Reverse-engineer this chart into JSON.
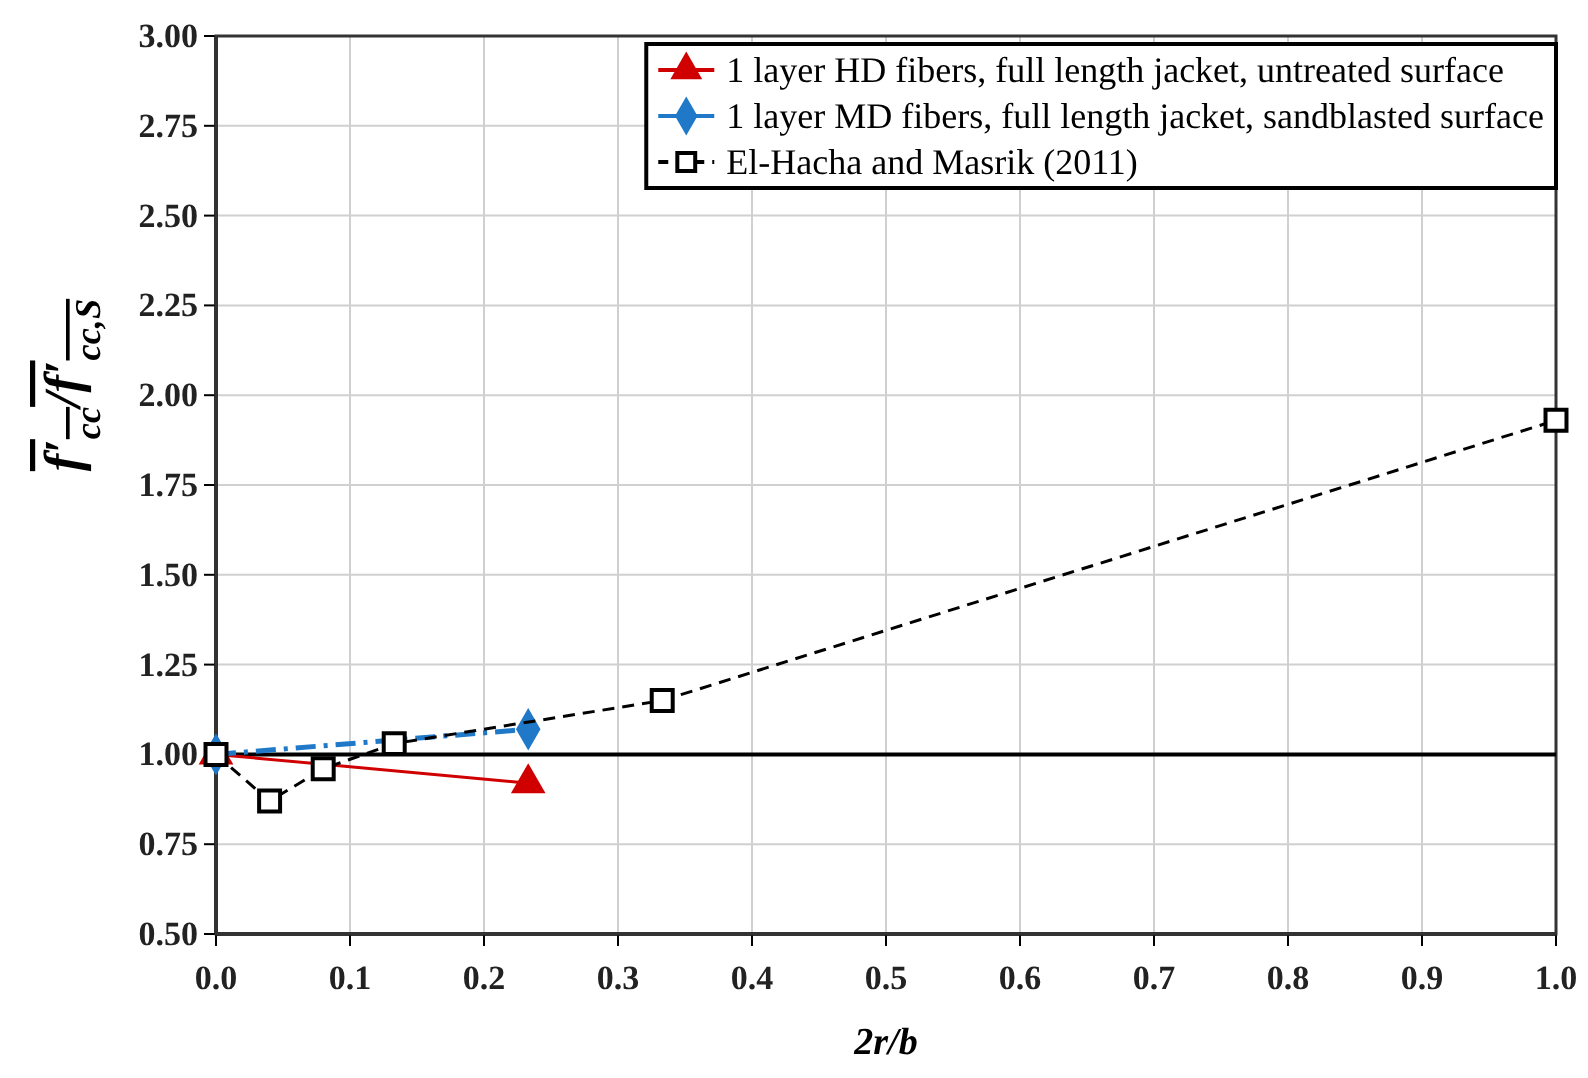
{
  "chart_data": {
    "type": "line",
    "xlabel": "2r/b",
    "ylabel": "f′$_{cc}$/f′$_{cc,S}$",
    "xlim": [
      0,
      1
    ],
    "xticks": [
      {
        "value": 0,
        "label": "0.0"
      },
      {
        "value": 0.1,
        "label": "0.1"
      },
      {
        "value": 0.2,
        "label": "0.2"
      },
      {
        "value": 0.3,
        "label": "0.3"
      },
      {
        "value": 0.4,
        "label": "0.4"
      },
      {
        "value": 0.5,
        "label": "0.5"
      },
      {
        "value": 0.6,
        "label": "0.6"
      },
      {
        "value": 0.7,
        "label": "0.7"
      },
      {
        "value": 0.8,
        "label": "0.8"
      },
      {
        "value": 0.9,
        "label": "0.9"
      },
      {
        "value": 1,
        "label": "1.0"
      }
    ],
    "ylim": [
      0.5,
      3
    ],
    "yticks": [
      {
        "value": 0.5,
        "label": "0.50"
      },
      {
        "value": 0.75,
        "label": "0.75"
      },
      {
        "value": 1,
        "label": "1.00"
      },
      {
        "value": 1.25,
        "label": "1.25"
      },
      {
        "value": 1.5,
        "label": "1.50"
      },
      {
        "value": 1.75,
        "label": "1.75"
      },
      {
        "value": 2,
        "label": "2.00"
      },
      {
        "value": 2.25,
        "label": "2.25"
      },
      {
        "value": 2.5,
        "label": "2.50"
      },
      {
        "value": 2.75,
        "label": "2.75"
      },
      {
        "value": 3,
        "label": "3.00"
      }
    ],
    "grid": true,
    "legend": "top right",
    "ref_lines": [
      {
        "axis": "y",
        "value": 1,
        "color": "#000000",
        "line_style": "solid"
      }
    ],
    "series": [
      {
        "name": "1 layer HD fibers, full length jacket, untreated surface",
        "color": "#d00000",
        "marker": "triangle",
        "line_style": "solid",
        "x": [
          0,
          0.233
        ],
        "values": [
          1.0,
          0.92
        ]
      },
      {
        "name": "1 layer MD fibers, full length jacket, sandblasted surface",
        "color": "#1f78c8",
        "marker": "diamond",
        "line_style": "dashdot",
        "x": [
          0,
          0.233
        ],
        "values": [
          1.0,
          1.07
        ]
      },
      {
        "name": "El-Hacha and Masrik (2011)",
        "color": "#000000",
        "marker": "square",
        "line_style": "dashed",
        "x": [
          0,
          0.04,
          0.08,
          0.133,
          0.333,
          1.0
        ],
        "values": [
          1.0,
          0.87,
          0.96,
          1.03,
          1.15,
          1.93
        ]
      }
    ]
  }
}
